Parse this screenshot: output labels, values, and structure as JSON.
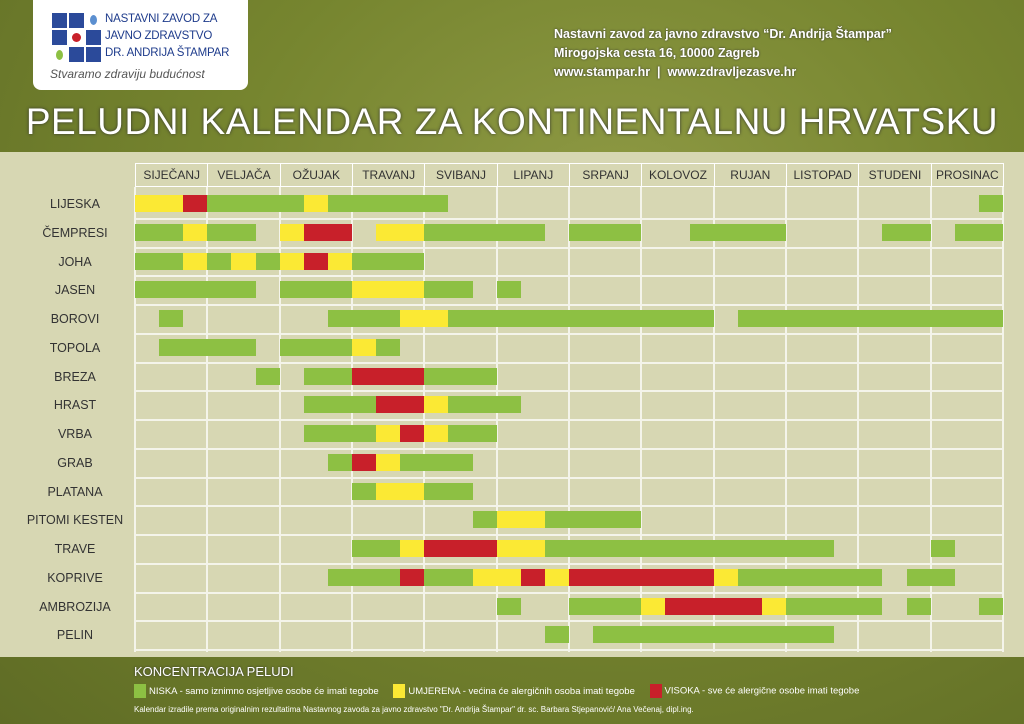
{
  "logo": {
    "lines": [
      "NASTAVNI ZAVOD ZA",
      "JAVNO ZDRAVSTVO",
      "DR. ANDRIJA ŠTAMPAR"
    ],
    "slogan": "Stvaramo zdraviju budućnost"
  },
  "contact": {
    "name": "Nastavni zavod za javno zdravstvo “Dr. Andrija Štampar”",
    "address": "Mirogojska cesta 16, 10000 Zagreb",
    "web": "www.stampar.hr  |  www.zdravljezasve.hr"
  },
  "colors": {
    "niska": "#8dc043",
    "umjerena": "#fbe934",
    "visoka": "#c8202a"
  },
  "chart_data": {
    "type": "gantt",
    "title": "PELUDNI KALENDAR ZA KONTINENTALNU HRVATSKU",
    "x_unit": "decade of year (1-36; three per month)",
    "months": [
      "SIJEČANJ",
      "VELJAČA",
      "OŽUJAK",
      "TRAVANJ",
      "SVIBANJ",
      "LIPANJ",
      "SRPANJ",
      "KOLOVOZ",
      "RUJAN",
      "LISTOPAD",
      "STUDENI",
      "PROSINAC"
    ],
    "plants": [
      {
        "name": "LIJESKA",
        "segments": [
          [
            1,
            2,
            "umjerena"
          ],
          [
            3,
            3,
            "visoka"
          ],
          [
            4,
            7,
            "niska"
          ],
          [
            8,
            8,
            "umjerena"
          ],
          [
            9,
            13,
            "niska"
          ],
          [
            36,
            36,
            "niska"
          ]
        ]
      },
      {
        "name": "ČEMPRESI",
        "segments": [
          [
            1,
            2,
            "niska"
          ],
          [
            3,
            3,
            "umjerena"
          ],
          [
            4,
            5,
            "niska"
          ],
          [
            7,
            7,
            "umjerena"
          ],
          [
            8,
            9,
            "visoka"
          ],
          [
            11,
            12,
            "umjerena"
          ],
          [
            13,
            17,
            "niska"
          ],
          [
            19,
            21,
            "niska"
          ],
          [
            24,
            27,
            "niska"
          ],
          [
            32,
            33,
            "niska"
          ],
          [
            35,
            36,
            "niska"
          ]
        ]
      },
      {
        "name": "JOHA",
        "segments": [
          [
            1,
            2,
            "niska"
          ],
          [
            3,
            3,
            "umjerena"
          ],
          [
            4,
            4,
            "niska"
          ],
          [
            5,
            5,
            "umjerena"
          ],
          [
            6,
            6,
            "niska"
          ],
          [
            7,
            7,
            "umjerena"
          ],
          [
            8,
            8,
            "visoka"
          ],
          [
            9,
            9,
            "umjerena"
          ],
          [
            10,
            12,
            "niska"
          ]
        ]
      },
      {
        "name": "JASEN",
        "segments": [
          [
            1,
            5,
            "niska"
          ],
          [
            7,
            9,
            "niska"
          ],
          [
            10,
            12,
            "umjerena"
          ],
          [
            13,
            14,
            "niska"
          ],
          [
            16,
            16,
            "niska"
          ]
        ]
      },
      {
        "name": "BOROVI",
        "segments": [
          [
            2,
            2,
            "niska"
          ],
          [
            9,
            11,
            "niska"
          ],
          [
            12,
            13,
            "umjerena"
          ],
          [
            14,
            24,
            "niska"
          ],
          [
            26,
            36,
            "niska"
          ]
        ]
      },
      {
        "name": "TOPOLA",
        "segments": [
          [
            2,
            5,
            "niska"
          ],
          [
            7,
            9,
            "niska"
          ],
          [
            10,
            10,
            "umjerena"
          ],
          [
            11,
            11,
            "niska"
          ]
        ]
      },
      {
        "name": "BREZA",
        "segments": [
          [
            6,
            6,
            "niska"
          ],
          [
            8,
            9,
            "niska"
          ],
          [
            10,
            12,
            "visoka"
          ],
          [
            13,
            15,
            "niska"
          ]
        ]
      },
      {
        "name": "HRAST",
        "segments": [
          [
            8,
            10,
            "niska"
          ],
          [
            11,
            12,
            "visoka"
          ],
          [
            13,
            13,
            "umjerena"
          ],
          [
            14,
            16,
            "niska"
          ]
        ]
      },
      {
        "name": "VRBA",
        "segments": [
          [
            8,
            10,
            "niska"
          ],
          [
            11,
            11,
            "umjerena"
          ],
          [
            12,
            12,
            "visoka"
          ],
          [
            13,
            13,
            "umjerena"
          ],
          [
            14,
            15,
            "niska"
          ]
        ]
      },
      {
        "name": "GRAB",
        "segments": [
          [
            9,
            9,
            "niska"
          ],
          [
            10,
            10,
            "visoka"
          ],
          [
            11,
            11,
            "umjerena"
          ],
          [
            12,
            14,
            "niska"
          ]
        ]
      },
      {
        "name": "PLATANA",
        "segments": [
          [
            10,
            10,
            "niska"
          ],
          [
            11,
            12,
            "umjerena"
          ],
          [
            13,
            14,
            "niska"
          ]
        ]
      },
      {
        "name": "PITOMI KESTEN",
        "segments": [
          [
            15,
            15,
            "niska"
          ],
          [
            16,
            17,
            "umjerena"
          ],
          [
            18,
            21,
            "niska"
          ]
        ]
      },
      {
        "name": "TRAVE",
        "segments": [
          [
            10,
            11,
            "niska"
          ],
          [
            12,
            12,
            "umjerena"
          ],
          [
            13,
            15,
            "visoka"
          ],
          [
            16,
            17,
            "umjerena"
          ],
          [
            18,
            29,
            "niska"
          ],
          [
            34,
            34,
            "niska"
          ]
        ]
      },
      {
        "name": "KOPRIVE",
        "segments": [
          [
            9,
            11,
            "niska"
          ],
          [
            12,
            12,
            "visoka"
          ],
          [
            13,
            14,
            "niska"
          ],
          [
            15,
            16,
            "umjerena"
          ],
          [
            17,
            17,
            "visoka"
          ],
          [
            18,
            18,
            "umjerena"
          ],
          [
            19,
            24,
            "visoka"
          ],
          [
            25,
            25,
            "umjerena"
          ],
          [
            26,
            31,
            "niska"
          ],
          [
            33,
            34,
            "niska"
          ]
        ]
      },
      {
        "name": "AMBROZIJA",
        "segments": [
          [
            16,
            16,
            "niska"
          ],
          [
            19,
            21,
            "niska"
          ],
          [
            22,
            22,
            "umjerena"
          ],
          [
            23,
            26,
            "visoka"
          ],
          [
            27,
            27,
            "umjerena"
          ],
          [
            28,
            31,
            "niska"
          ],
          [
            33,
            33,
            "niska"
          ],
          [
            36,
            36,
            "niska"
          ]
        ]
      },
      {
        "name": "PELIN",
        "segments": [
          [
            18,
            18,
            "niska"
          ],
          [
            20,
            29,
            "niska"
          ]
        ]
      }
    ],
    "legend": {
      "title": "KONCENTRACIJA PELUDI",
      "items": [
        {
          "key": "niska",
          "text": "NISKA - samo iznimno osjetljive osobe će imati tegobe"
        },
        {
          "key": "umjerena",
          "text": "UMJERENA - većina će alergičnih osoba imati tegobe"
        },
        {
          "key": "visoka",
          "text": "VISOKA - sve će alergične osobe imati tegobe"
        }
      ]
    }
  },
  "credit": "Kalendar izradile prema originalnim rezultatima Nastavnog zavoda za javno zdravstvo \"Dr. Andrija Štampar\" dr. sc. Barbara Stjepanović/ Ana Večenaj, dipl.ing."
}
